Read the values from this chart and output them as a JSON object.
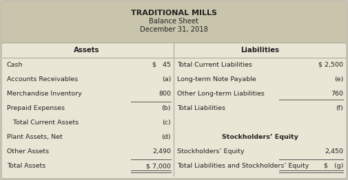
{
  "title_line1": "TRADITIONAL MILLS",
  "title_line2": "Balance Sheet",
  "title_line3": "December 31, 2018",
  "header_bg": "#c9c5ac",
  "table_bg": "#eae6d5",
  "outer_bg": "#cbc7b8",
  "assets_header": "Assets",
  "liabilities_header": "Liabilities",
  "assets_rows": [
    {
      "label": "Cash",
      "value": "$   45",
      "bold": false,
      "indent": false,
      "underline_above": false,
      "double_underline": false
    },
    {
      "label": "Accounts Receivables",
      "value": "(a)",
      "bold": false,
      "indent": false,
      "underline_above": false,
      "double_underline": false
    },
    {
      "label": "Merchandise Inventory",
      "value": "800",
      "bold": false,
      "indent": false,
      "underline_above": false,
      "double_underline": false
    },
    {
      "label": "Prepaid Expenses",
      "value": "(b)",
      "bold": false,
      "indent": false,
      "underline_above": true,
      "double_underline": false
    },
    {
      "label": "   Total Current Assets",
      "value": "(c)",
      "bold": false,
      "indent": true,
      "underline_above": false,
      "double_underline": false
    },
    {
      "label": "Plant Assets, Net",
      "value": "(d)",
      "bold": false,
      "indent": false,
      "underline_above": false,
      "double_underline": false
    },
    {
      "label": "Other Assets",
      "value": "2,490",
      "bold": false,
      "indent": false,
      "underline_above": false,
      "double_underline": false
    },
    {
      "label": "Total Assets",
      "value": "$ 7,000",
      "bold": false,
      "indent": false,
      "underline_above": true,
      "double_underline": true
    }
  ],
  "liabilities_rows": [
    {
      "label": "Total Current Liabilities",
      "value": "$ 2,500",
      "bold": false,
      "center_label": false,
      "underline_above": false,
      "underline_below": false,
      "double_underline": false
    },
    {
      "label": "Long-term Note Payable",
      "value": "(e)",
      "bold": false,
      "center_label": false,
      "underline_above": false,
      "underline_below": false,
      "double_underline": false
    },
    {
      "label": "Other Long-term Liabilities",
      "value": "760",
      "bold": false,
      "center_label": false,
      "underline_above": false,
      "underline_below": true,
      "double_underline": false
    },
    {
      "label": "Total Liabilities",
      "value": "(f)",
      "bold": false,
      "center_label": false,
      "underline_above": false,
      "underline_below": false,
      "double_underline": false
    },
    {
      "label": "",
      "value": "",
      "bold": false,
      "center_label": false,
      "underline_above": false,
      "underline_below": false,
      "double_underline": false
    },
    {
      "label": "Stockholders’ Equity",
      "value": "",
      "bold": true,
      "center_label": true,
      "underline_above": false,
      "underline_below": false,
      "double_underline": false
    },
    {
      "label": "Stockholders’ Equity",
      "value": "2,450",
      "bold": false,
      "center_label": false,
      "underline_above": false,
      "underline_below": false,
      "double_underline": false
    },
    {
      "label": "Total Liabilities and Stockholders’ Equity",
      "value": "$   (g)",
      "bold": false,
      "center_label": false,
      "underline_above": true,
      "underline_below": false,
      "double_underline": true
    }
  ],
  "font_size": 6.8,
  "title_font_size": 8.0,
  "subtitle_font_size": 7.2
}
